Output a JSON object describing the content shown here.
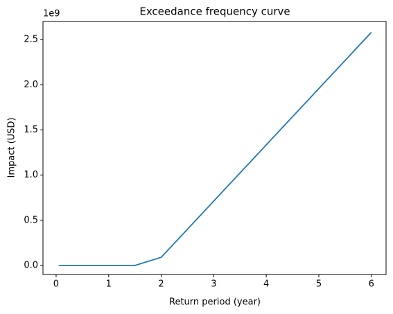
{
  "chart_data": {
    "type": "line",
    "title": "Exceedance frequency curve",
    "x_label": "Return period (year)",
    "y_label": "Impact (USD)",
    "y_offset_text": "1e9",
    "x": [
      0.05,
      1.5,
      2,
      6
    ],
    "series": [
      {
        "color": "#1f77b4",
        "values": [
          0,
          0,
          0.09,
          2.58
        ]
      }
    ],
    "xlim": [
      -0.25,
      6.28
    ],
    "ylim": [
      -0.1,
      2.7
    ],
    "xticks": [
      0,
      1,
      2,
      3,
      4,
      5,
      6
    ],
    "yticks": [
      {
        "value": 0,
        "label": "0.0"
      },
      0.5,
      {
        "value": 1,
        "label": "1.0"
      },
      1.5,
      {
        "value": 2,
        "label": "2.0"
      },
      2.5
    ],
    "grid": false
  }
}
